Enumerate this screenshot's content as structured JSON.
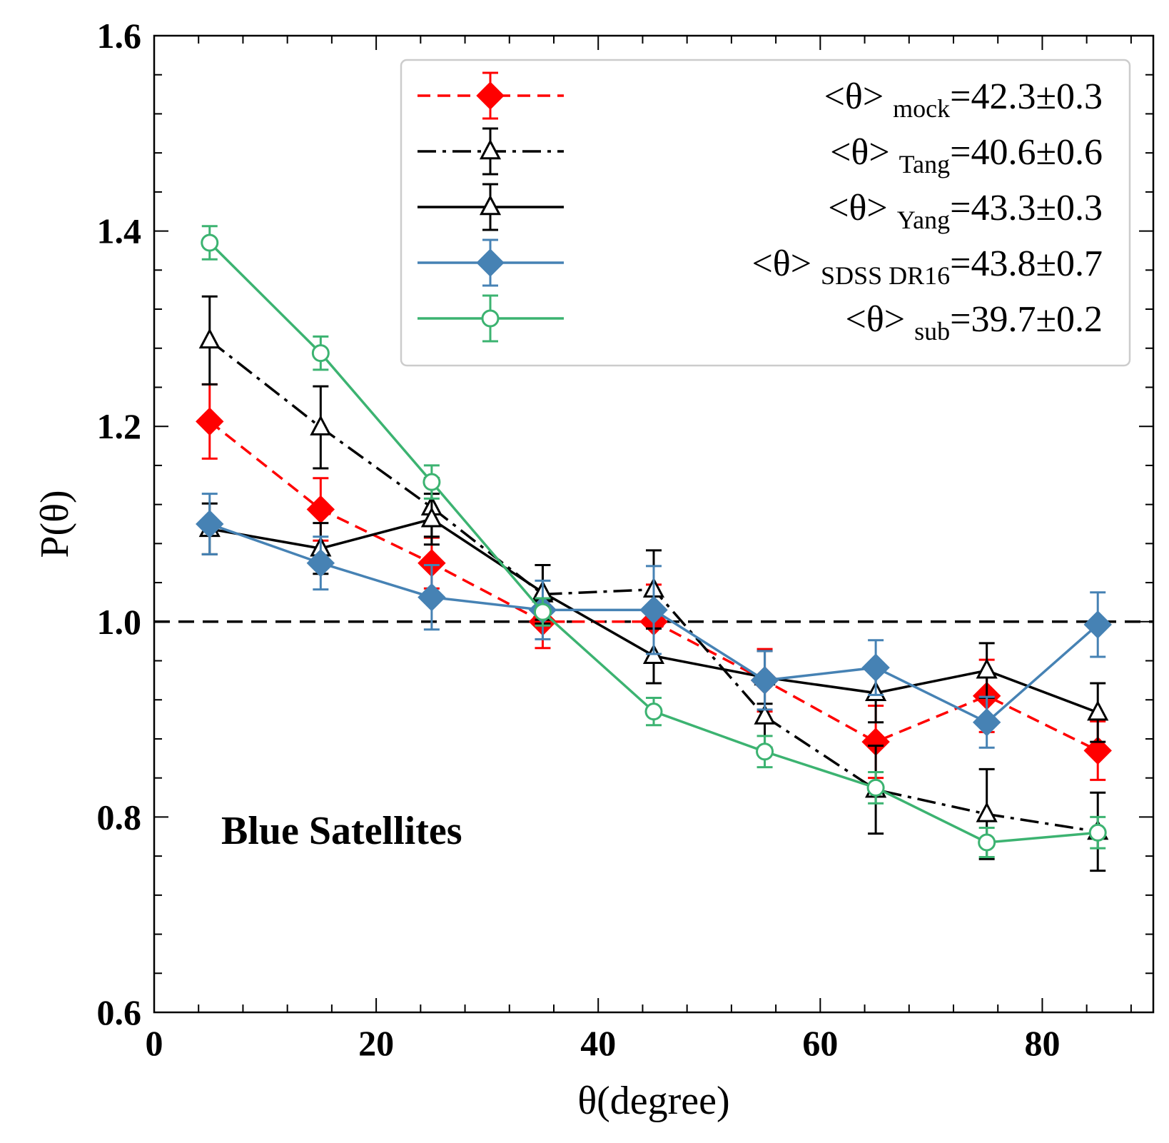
{
  "chart_data": {
    "type": "line",
    "xlabel": "θ(degree)",
    "ylabel": "P(θ)",
    "xlim": [
      0,
      90
    ],
    "ylim": [
      0.6,
      1.6
    ],
    "xticks": [
      "0",
      "20",
      "40",
      "60",
      "80"
    ],
    "yticks": [
      "0.6",
      "0.8",
      "1.0",
      "1.2",
      "1.4",
      "1.6"
    ],
    "grid": false,
    "legend_position": "top-right",
    "reference_line": {
      "y": 1.0,
      "style": "dashed",
      "color": "#000000"
    },
    "annotation": "Blue Satellites",
    "x": [
      5,
      15,
      25,
      35,
      45,
      55,
      65,
      75,
      85
    ],
    "series": [
      {
        "legend_prefix": "<θ>",
        "legend_sub": "mock",
        "legend_value": "=42.3±0.3",
        "color": "#ff0000",
        "dash": "dashed",
        "marker": "diamond-filled",
        "values": [
          1.205,
          1.115,
          1.06,
          1.0,
          1.0,
          0.94,
          0.877,
          0.924,
          0.868
        ],
        "errors": [
          0.038,
          0.032,
          0.026,
          0.027,
          0.038,
          0.032,
          0.037,
          0.037,
          0.03
        ]
      },
      {
        "legend_prefix": "<θ>",
        "legend_sub": "Tang",
        "legend_value": "=40.6±0.6",
        "color": "#000000",
        "dash": "dashdot",
        "marker": "triangle-open",
        "values": [
          1.288,
          1.199,
          1.117,
          1.028,
          1.033,
          0.903,
          0.828,
          0.803,
          0.785
        ],
        "errors": [
          0.045,
          0.042,
          0.03,
          0.03,
          0.04,
          0.032,
          0.045,
          0.046,
          0.04
        ]
      },
      {
        "legend_prefix": "<θ>",
        "legend_sub": "Yang",
        "legend_value": "=43.3±0.3",
        "color": "#000000",
        "dash": "solid",
        "marker": "triangle-open",
        "values": [
          1.095,
          1.075,
          1.105,
          1.03,
          0.965,
          0.943,
          0.927,
          0.95,
          0.907
        ],
        "errors": [
          0.026,
          0.026,
          0.026,
          0.028,
          0.028,
          0.027,
          0.03,
          0.028,
          0.03
        ]
      },
      {
        "legend_prefix": "<θ>",
        "legend_sub": "SDSS DR16",
        "legend_value": "=43.8±0.7",
        "color": "#4682b4",
        "dash": "solid",
        "marker": "diamond-filled",
        "values": [
          1.1,
          1.06,
          1.025,
          1.012,
          1.012,
          0.94,
          0.953,
          0.897,
          0.997
        ],
        "errors": [
          0.031,
          0.027,
          0.033,
          0.03,
          0.045,
          0.03,
          0.028,
          0.026,
          0.033
        ]
      },
      {
        "legend_prefix": "<θ>",
        "legend_sub": "sub",
        "legend_value": "=39.7±0.2",
        "color": "#3cb371",
        "dash": "solid",
        "marker": "circle-open",
        "values": [
          1.388,
          1.275,
          1.143,
          1.01,
          0.908,
          0.867,
          0.83,
          0.774,
          0.784
        ],
        "errors": [
          0.017,
          0.017,
          0.017,
          0.014,
          0.014,
          0.016,
          0.016,
          0.015,
          0.016
        ]
      }
    ]
  }
}
